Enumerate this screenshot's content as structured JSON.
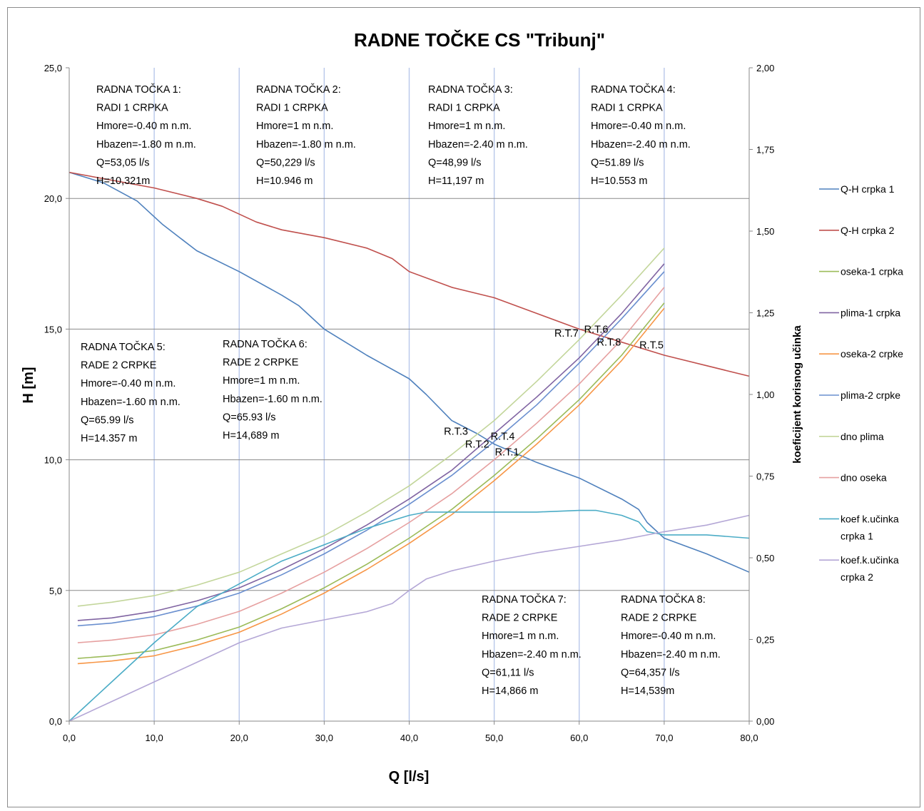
{
  "chart_data": {
    "type": "line",
    "title": "RADNE TOČKE CS \"Tribunj\"",
    "xlabel": "Q  [l/s]",
    "ylabel": "H  [m]",
    "y2label": "koeficijent korisnog učinka",
    "xlim": [
      0,
      80
    ],
    "ylim": [
      0,
      25
    ],
    "y2lim": [
      0,
      2
    ],
    "x_ticks": [
      "0,0",
      "10,0",
      "20,0",
      "30,0",
      "40,0",
      "50,0",
      "60,0",
      "70,0",
      "80,0"
    ],
    "y_ticks": [
      "0,0",
      "5,0",
      "10,0",
      "15,0",
      "20,0",
      "25,0"
    ],
    "y2_ticks": [
      "0,00",
      "0,25",
      "0,50",
      "0,75",
      "1,00",
      "1,25",
      "1,50",
      "1,75",
      "2,00"
    ],
    "grid": "vertical lines every 10 l/s, horizontal lines every 5 m",
    "legend_position": "right",
    "series": [
      {
        "name": "Q-H crpka 1",
        "color": "#4f81bd",
        "axis": "left",
        "x": [
          0,
          4,
          8,
          9,
          11,
          15,
          20,
          25,
          27,
          30,
          35,
          40,
          42,
          45,
          48,
          50,
          55,
          60,
          65,
          67,
          68,
          70,
          75,
          80
        ],
        "y": [
          21.0,
          20.6,
          19.9,
          19.6,
          19.0,
          18.0,
          17.2,
          16.3,
          15.9,
          15.0,
          14.0,
          13.1,
          12.5,
          11.5,
          11.0,
          10.6,
          9.9,
          9.3,
          8.5,
          8.1,
          7.6,
          7.0,
          6.4,
          5.7
        ]
      },
      {
        "name": "Q-H crpka 2",
        "color": "#c0504d",
        "axis": "left",
        "x": [
          0,
          5,
          10,
          15,
          18,
          20,
          22,
          25,
          30,
          35,
          38,
          40,
          45,
          50,
          55,
          60,
          65,
          70,
          75,
          80
        ],
        "y": [
          21.0,
          20.7,
          20.4,
          20.0,
          19.7,
          19.4,
          19.1,
          18.8,
          18.5,
          18.1,
          17.7,
          17.2,
          16.6,
          16.2,
          15.6,
          15.0,
          14.5,
          14.0,
          13.6,
          13.2
        ]
      },
      {
        "name": "oseka-1 crpka",
        "color": "#9bbb59",
        "axis": "left",
        "x": [
          1,
          5,
          10,
          15,
          20,
          25,
          30,
          35,
          40,
          45,
          50,
          55,
          60,
          65,
          70
        ],
        "y": [
          2.4,
          2.5,
          2.7,
          3.1,
          3.6,
          4.3,
          5.1,
          6.0,
          7.0,
          8.1,
          9.4,
          10.8,
          12.3,
          14.0,
          16.0
        ]
      },
      {
        "name": "plima-1 crpka",
        "color": "#8064a2",
        "axis": "left",
        "x": [
          1,
          5,
          10,
          15,
          20,
          25,
          30,
          35,
          40,
          45,
          50,
          55,
          60,
          65,
          70
        ],
        "y": [
          3.85,
          3.95,
          4.2,
          4.6,
          5.1,
          5.8,
          6.6,
          7.5,
          8.5,
          9.6,
          11.0,
          12.4,
          13.9,
          15.6,
          17.5
        ]
      },
      {
        "name": "oseka-2 crpke",
        "color": "#f79646",
        "axis": "left",
        "x": [
          1,
          5,
          10,
          15,
          20,
          25,
          30,
          35,
          40,
          45,
          50,
          55,
          60,
          65,
          70
        ],
        "y": [
          2.2,
          2.3,
          2.5,
          2.9,
          3.4,
          4.1,
          4.9,
          5.8,
          6.8,
          7.9,
          9.2,
          10.6,
          12.1,
          13.8,
          15.8
        ]
      },
      {
        "name": "plima-2 crpke",
        "color": "#6a8fcf",
        "axis": "left",
        "x": [
          1,
          5,
          10,
          15,
          20,
          25,
          30,
          35,
          40,
          45,
          50,
          55,
          60,
          65,
          70
        ],
        "y": [
          3.65,
          3.75,
          4.0,
          4.4,
          4.9,
          5.6,
          6.4,
          7.3,
          8.3,
          9.4,
          10.7,
          12.1,
          13.7,
          15.4,
          17.2
        ]
      },
      {
        "name": "dno plima",
        "color": "#c3d69b",
        "axis": "left",
        "x": [
          1,
          5,
          10,
          15,
          20,
          25,
          30,
          35,
          40,
          45,
          50,
          55,
          60,
          65,
          70
        ],
        "y": [
          4.4,
          4.55,
          4.8,
          5.2,
          5.7,
          6.4,
          7.1,
          8.0,
          9.0,
          10.2,
          11.5,
          13.0,
          14.6,
          16.3,
          18.1
        ]
      },
      {
        "name": "dno oseka",
        "color": "#e6a0a0",
        "axis": "left",
        "x": [
          1,
          5,
          10,
          15,
          20,
          25,
          30,
          35,
          40,
          45,
          50,
          55,
          60,
          65,
          70
        ],
        "y": [
          3.0,
          3.1,
          3.3,
          3.7,
          4.2,
          4.9,
          5.7,
          6.6,
          7.6,
          8.7,
          10.0,
          11.4,
          12.9,
          14.6,
          16.6
        ]
      },
      {
        "name": "koef k.učinka crpka 1",
        "color": "#4bacc6",
        "axis": "right",
        "x": [
          0,
          5,
          10,
          15,
          20,
          25,
          30,
          35,
          40,
          42,
          45,
          50,
          55,
          60,
          62,
          65,
          67,
          68,
          70,
          75,
          80
        ],
        "y": [
          0.0,
          0.12,
          0.24,
          0.35,
          0.42,
          0.49,
          0.54,
          0.59,
          0.63,
          0.64,
          0.64,
          0.64,
          0.64,
          0.645,
          0.645,
          0.63,
          0.61,
          0.58,
          0.57,
          0.57,
          0.56
        ]
      },
      {
        "name": "koef.k.učinka crpka 2",
        "color": "#b4a7d6",
        "axis": "right",
        "x": [
          0,
          5,
          10,
          15,
          20,
          25,
          30,
          35,
          38,
          40,
          42,
          45,
          50,
          55,
          60,
          65,
          70,
          75,
          80
        ],
        "y": [
          0.0,
          0.06,
          0.12,
          0.18,
          0.24,
          0.285,
          0.31,
          0.335,
          0.36,
          0.4,
          0.435,
          0.46,
          0.49,
          0.515,
          0.535,
          0.555,
          0.58,
          0.6,
          0.63
        ]
      }
    ],
    "point_labels": [
      {
        "text": "R.T.1",
        "x": 51.5,
        "y": 10.3
      },
      {
        "text": "R.T.2",
        "x": 48.0,
        "y": 10.6
      },
      {
        "text": "R.T.3",
        "x": 45.5,
        "y": 11.1
      },
      {
        "text": "R.T.4",
        "x": 51.0,
        "y": 10.9
      },
      {
        "text": "R.T.5",
        "x": 68.5,
        "y": 14.4
      },
      {
        "text": "R.T.6",
        "x": 62.0,
        "y": 15.0
      },
      {
        "text": "R.T.7",
        "x": 58.5,
        "y": 14.85
      },
      {
        "text": "R.T.8",
        "x": 63.5,
        "y": 14.5
      }
    ],
    "annotations": [
      {
        "lines": [
          "RADNA TOČKA 1:",
          "RADI 1 CRPKA",
          "Hmore=-0.40 m n.m.",
          "Hbazen=-1.80 m n.m.",
          "Q=53,05 l/s",
          "H=10,321m"
        ]
      },
      {
        "lines": [
          "RADNA TOČKA 2:",
          "RADI 1 CRPKA",
          "Hmore=1 m n.m.",
          "Hbazen=-1.80 m n.m.",
          "Q=50,229 l/s",
          "H=10.946 m"
        ]
      },
      {
        "lines": [
          "RADNA TOČKA 3:",
          "RADI 1 CRPKA",
          "Hmore=1 m n.m.",
          "Hbazen=-2.40 m n.m.",
          "Q=48,99 l/s",
          "H=11,197 m"
        ]
      },
      {
        "lines": [
          "RADNA TOČKA 4:",
          "RADI 1 CRPKA",
          "Hmore=-0.40 m n.m.",
          "Hbazen=-2.40 m n.m.",
          "Q=51.89 l/s",
          "H=10.553 m"
        ]
      },
      {
        "lines": [
          "RADNA TOČKA 5:",
          "RADE 2 CRPKE",
          "Hmore=-0.40 m n.m.",
          "Hbazen=-1.60 m n.m.",
          "Q=65.99 l/s",
          "H=14.357 m"
        ]
      },
      {
        "lines": [
          "RADNA TOČKA 6:",
          "RADE 2 CRPKE",
          "Hmore=1 m n.m.",
          "Hbazen=-1.60 m n.m.",
          "Q=65.93 l/s",
          "H=14,689 m"
        ]
      },
      {
        "lines": [
          "RADNA TOČKA 7:",
          "RADE 2 CRPKE",
          "Hmore=1 m n.m.",
          "Hbazen=-2.40 m n.m.",
          "Q=61,11 l/s",
          "H=14,866 m"
        ]
      },
      {
        "lines": [
          "RADNA TOČKA 8:",
          "RADE 2 CRPKE",
          "Hmore=-0.40 m n.m.",
          "Hbazen=-2.40 m n.m.",
          "Q=64,357 l/s",
          "H=14,539m"
        ]
      }
    ],
    "legend": [
      {
        "label": "Q-H crpka 1",
        "color": "#4f81bd"
      },
      {
        "label": "Q-H crpka 2",
        "color": "#c0504d"
      },
      {
        "label": "oseka-1 crpka",
        "color": "#9bbb59"
      },
      {
        "label": "plima-1 crpka",
        "color": "#8064a2"
      },
      {
        "label": "oseka-2 crpke",
        "color": "#f79646"
      },
      {
        "label": "plima-2 crpke",
        "color": "#6a8fcf"
      },
      {
        "label": "dno plima",
        "color": "#c3d69b"
      },
      {
        "label": "dno oseka",
        "color": "#e6a0a0"
      },
      {
        "lines": [
          "koef k.učinka",
          "crpka 1"
        ],
        "color": "#4bacc6"
      },
      {
        "lines": [
          "koef.k.učinka",
          "crpka 2"
        ],
        "color": "#b4a7d6"
      }
    ]
  }
}
